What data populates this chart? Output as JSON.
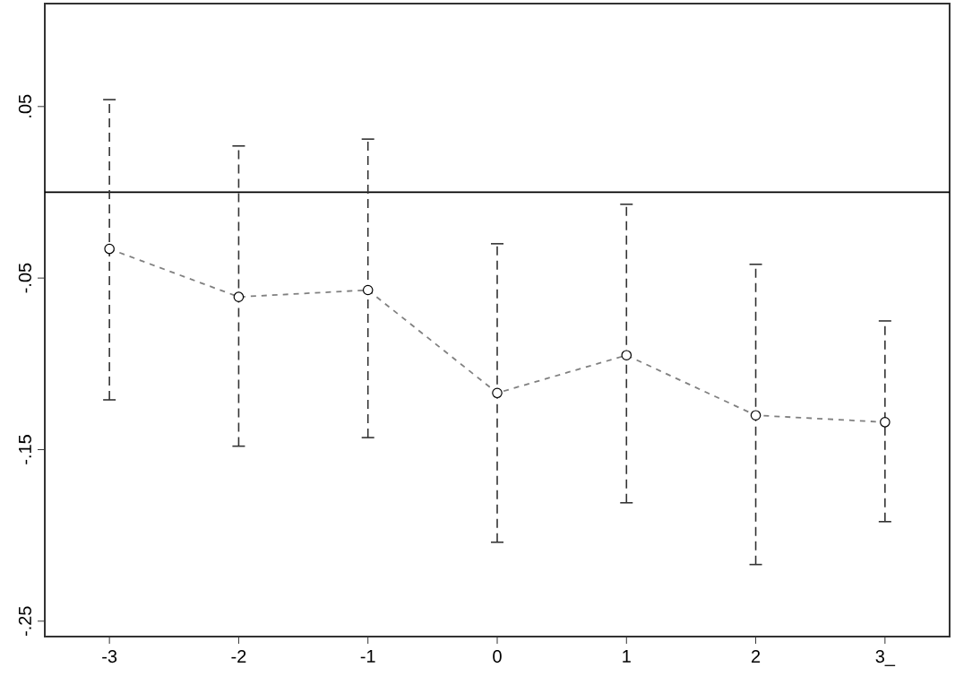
{
  "chart_data": {
    "type": "line",
    "categories": [
      "-3",
      "-2",
      "-1",
      "0",
      "1",
      "2",
      "3_"
    ],
    "series": [
      {
        "color": "#808080",
        "values": [
          -0.033,
          -0.061,
          -0.057,
          -0.117,
          -0.095,
          -0.13,
          -0.134
        ],
        "errors": [
          [
            -0.121,
            0.054
          ],
          [
            -0.148,
            0.027
          ],
          [
            -0.143,
            0.031
          ],
          [
            -0.204,
            -0.03
          ],
          [
            -0.181,
            -0.007
          ],
          [
            -0.217,
            -0.042
          ],
          [
            -0.192,
            -0.075
          ]
        ]
      }
    ],
    "ylim": [
      -0.259,
      0.11
    ],
    "yticks": [
      {
        "value": 0.05,
        "label": ".05"
      },
      {
        "value": -0.05,
        "label": "-.05"
      },
      {
        "value": -0.15,
        "label": "-.15"
      },
      {
        "value": -0.25,
        "label": "-.25"
      }
    ],
    "ref_lines": [
      {
        "axis": "y",
        "value": 0,
        "color": "#000000",
        "line_style": "solid"
      }
    ],
    "marker": "circle",
    "line_style": "dashed"
  }
}
